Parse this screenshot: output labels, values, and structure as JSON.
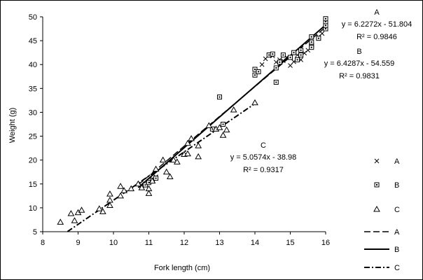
{
  "chart_data": {
    "type": "scatter",
    "title": "",
    "xlabel": "Fork length (cm)",
    "ylabel": "Weight (g)",
    "xlim": [
      8,
      16
    ],
    "ylim": [
      5,
      50
    ],
    "xticks": [
      "8",
      "9",
      "10",
      "11",
      "12",
      "13",
      "14",
      "15",
      "16"
    ],
    "yticks": [
      "5",
      "10",
      "15",
      "20",
      "25",
      "30",
      "35",
      "40",
      "45",
      "50"
    ],
    "grid": false,
    "legend_position": "right",
    "series": [
      {
        "name": "A",
        "marker": "x",
        "points": [
          [
            10.8,
            14.6
          ],
          [
            10.9,
            15.0
          ],
          [
            11.0,
            15.4
          ],
          [
            11.1,
            16.0
          ],
          [
            11.2,
            16.5
          ],
          [
            14.2,
            40.0
          ],
          [
            14.3,
            41.2
          ],
          [
            14.4,
            42.0
          ],
          [
            14.5,
            41.8
          ],
          [
            14.6,
            40.5
          ],
          [
            14.7,
            41.0
          ],
          [
            14.8,
            40.8
          ],
          [
            14.9,
            41.5
          ],
          [
            15.0,
            39.8
          ],
          [
            15.1,
            40.6
          ],
          [
            15.2,
            42.0
          ],
          [
            15.3,
            41.0
          ],
          [
            15.4,
            42.4
          ],
          [
            15.5,
            43.0
          ],
          [
            15.6,
            44.5
          ],
          [
            15.8,
            45.8
          ],
          [
            15.9,
            46.5
          ],
          [
            16.0,
            47.8
          ]
        ]
      },
      {
        "name": "B",
        "marker": "square",
        "points": [
          [
            10.9,
            14.8
          ],
          [
            11.0,
            15.3
          ],
          [
            11.1,
            15.8
          ],
          [
            11.2,
            16.2
          ],
          [
            12.8,
            26.5
          ],
          [
            13.0,
            33.2
          ],
          [
            13.1,
            27.5
          ],
          [
            14.0,
            37.8
          ],
          [
            14.0,
            39.0
          ],
          [
            14.1,
            38.5
          ],
          [
            14.4,
            42.0
          ],
          [
            14.5,
            42.2
          ],
          [
            14.6,
            36.3
          ],
          [
            14.6,
            39.3
          ],
          [
            14.7,
            40.5
          ],
          [
            14.8,
            42.0
          ],
          [
            15.0,
            41.5
          ],
          [
            15.1,
            42.5
          ],
          [
            15.2,
            41.0
          ],
          [
            15.3,
            42.0
          ],
          [
            15.3,
            43.0
          ],
          [
            15.6,
            44.0
          ],
          [
            15.6,
            44.7
          ],
          [
            15.6,
            43.6
          ],
          [
            15.6,
            45.8
          ],
          [
            15.8,
            45.5
          ],
          [
            16.0,
            47.5
          ],
          [
            16.0,
            48.2
          ],
          [
            16.0,
            49.0
          ],
          [
            16.0,
            49.6
          ]
        ]
      },
      {
        "name": "C",
        "marker": "triangle",
        "points": [
          [
            8.5,
            7.0
          ],
          [
            8.8,
            8.8
          ],
          [
            8.9,
            7.3
          ],
          [
            9.0,
            9.0
          ],
          [
            9.1,
            9.5
          ],
          [
            9.6,
            9.8
          ],
          [
            9.7,
            9.2
          ],
          [
            9.9,
            11.6
          ],
          [
            9.9,
            12.9
          ],
          [
            9.9,
            10.5
          ],
          [
            10.2,
            12.5
          ],
          [
            10.3,
            13.6
          ],
          [
            10.5,
            14.0
          ],
          [
            10.2,
            14.5
          ],
          [
            10.7,
            15.0
          ],
          [
            10.8,
            14.2
          ],
          [
            11.0,
            14.0
          ],
          [
            11.0,
            13.0
          ],
          [
            11.1,
            15.6
          ],
          [
            11.2,
            18.1
          ],
          [
            11.4,
            20.0
          ],
          [
            11.5,
            17.5
          ],
          [
            11.6,
            16.5
          ],
          [
            11.7,
            20.0
          ],
          [
            11.8,
            19.6
          ],
          [
            12.0,
            21.2
          ],
          [
            12.1,
            21.3
          ],
          [
            12.1,
            23.5
          ],
          [
            12.2,
            24.5
          ],
          [
            12.4,
            23.0
          ],
          [
            12.4,
            20.7
          ],
          [
            12.7,
            27.2
          ],
          [
            12.9,
            26.5
          ],
          [
            13.0,
            26.8
          ],
          [
            13.1,
            25.2
          ],
          [
            13.2,
            26.3
          ],
          [
            13.4,
            30.5
          ],
          [
            14.0,
            32.0
          ]
        ]
      }
    ],
    "trendlines": [
      {
        "name": "A",
        "style": "dashed",
        "slope": 6.2272,
        "intercept": -51.804,
        "x_range": [
          10.7,
          16.0
        ],
        "equation": "y = 6.2272x - 51.804",
        "r2": "R² = 0.9846"
      },
      {
        "name": "B",
        "style": "solid",
        "slope": 6.4287,
        "intercept": -54.559,
        "x_range": [
          10.7,
          16.0
        ],
        "equation": "y = 6.4287x - 54.559",
        "r2": "R² = 0.9831"
      },
      {
        "name": "C",
        "style": "dash-dot",
        "slope": 5.0574,
        "intercept": -38.98,
        "x_range": [
          8.7,
          14.0
        ],
        "equation": "y = 5.0574x - 38.98",
        "r2": "R² = 0.9317"
      }
    ],
    "annotations": [
      {
        "series": "A",
        "label": "A"
      },
      {
        "series": "B",
        "label": "B"
      },
      {
        "series": "C",
        "label": "C"
      }
    ],
    "legend": [
      {
        "label": "A",
        "kind": "marker",
        "symbol": "x"
      },
      {
        "label": "B",
        "kind": "marker",
        "symbol": "square"
      },
      {
        "label": "C",
        "kind": "marker",
        "symbol": "triangle"
      },
      {
        "label": "A",
        "kind": "line",
        "style": "dashed"
      },
      {
        "label": "B",
        "kind": "line",
        "style": "solid"
      },
      {
        "label": "C",
        "kind": "line",
        "style": "dash-dot"
      }
    ]
  }
}
